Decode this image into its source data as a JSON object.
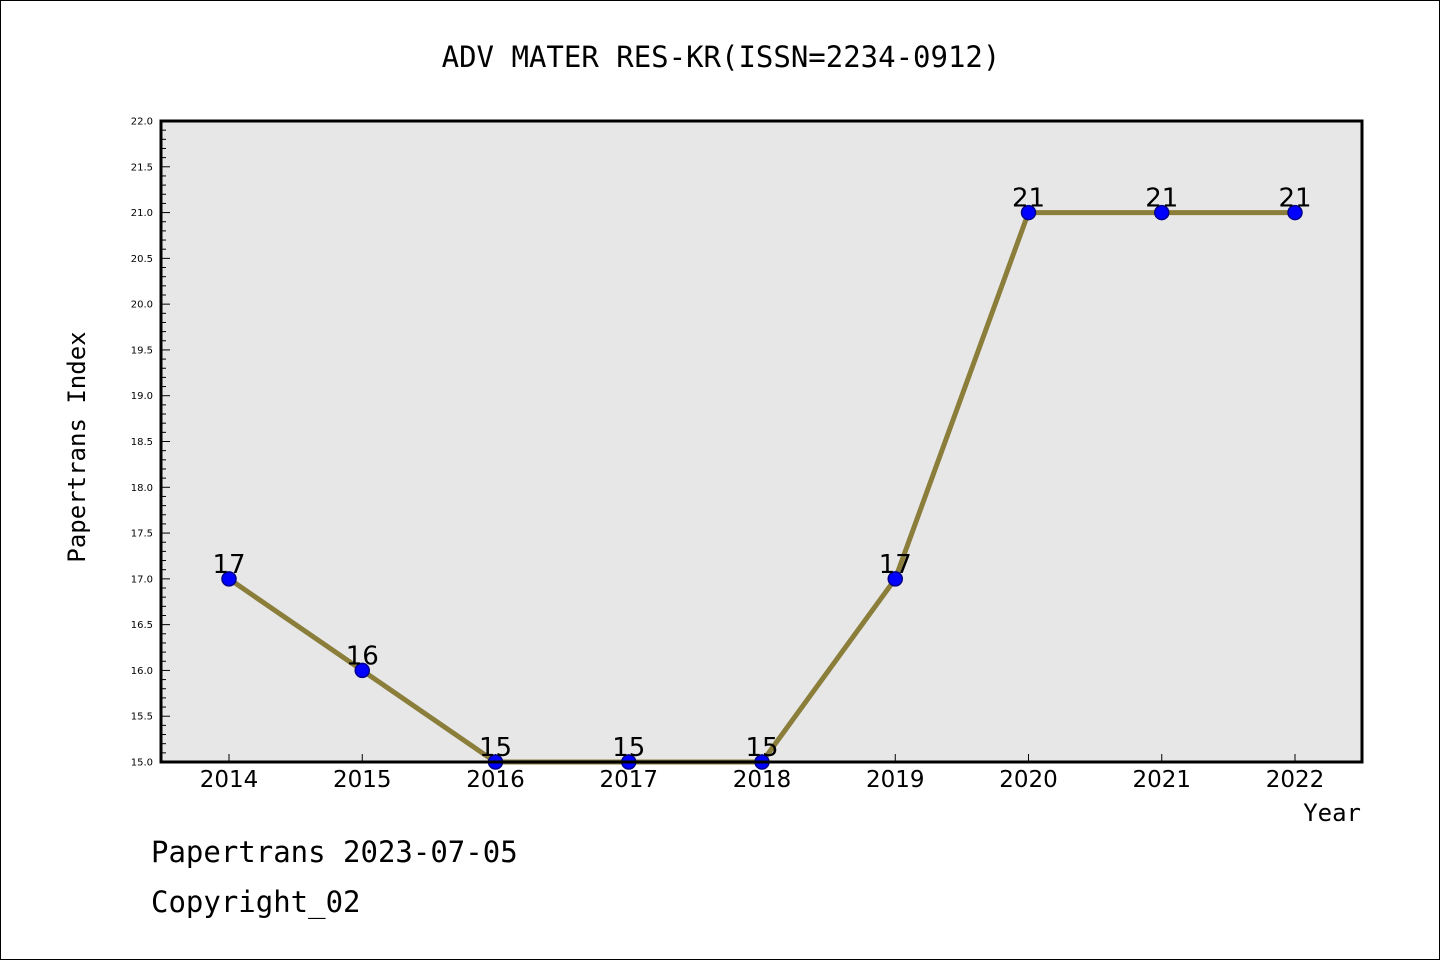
{
  "chart_data": {
    "type": "line",
    "title": "ADV MATER RES-KR(ISSN=2234-0912)",
    "xlabel": "Year",
    "ylabel": "Papertrans Index",
    "categories": [
      "2014",
      "2015",
      "2016",
      "2017",
      "2018",
      "2019",
      "2020",
      "2021",
      "2022"
    ],
    "series": [
      {
        "values": [
          17,
          16,
          15,
          15,
          15,
          17,
          21,
          21,
          21
        ]
      }
    ],
    "data_labels": [
      "17",
      "16",
      "15",
      "15",
      "15",
      "17",
      "21",
      "21",
      "21"
    ],
    "ylim": [
      15.0,
      22.0
    ],
    "ytick_step": 0.5,
    "yticks": [
      "15.0",
      "15.5",
      "16.0",
      "16.5",
      "17.0",
      "17.5",
      "18.0",
      "18.5",
      "19.0",
      "19.5",
      "20.0",
      "20.5",
      "21.0",
      "21.5",
      "22.0"
    ],
    "grid": false,
    "legend": "none",
    "colors": {
      "plot_background": "#e7e7e7",
      "line": "#8b7d3a",
      "marker_fill": "#0000ff",
      "marker_edge": "#00008b"
    }
  },
  "footer": {
    "date_line": "Papertrans 2023-07-05",
    "copyright_line": "Copyright_02"
  }
}
